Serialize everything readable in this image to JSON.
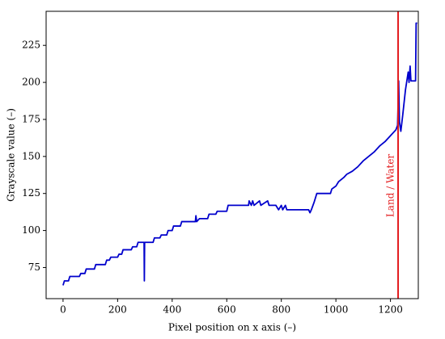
{
  "chart_data": {
    "type": "line",
    "xlabel": "Pixel position on x axis (–)",
    "ylabel": "Grayscale value (–)",
    "x": [
      0,
      5,
      20,
      25,
      60,
      65,
      80,
      85,
      115,
      120,
      155,
      160,
      170,
      175,
      200,
      205,
      215,
      220,
      250,
      255,
      270,
      275,
      297,
      298,
      299,
      330,
      335,
      355,
      360,
      380,
      385,
      400,
      405,
      430,
      435,
      485,
      487,
      490,
      500,
      530,
      535,
      560,
      565,
      600,
      605,
      640,
      680,
      682,
      690,
      695,
      700,
      720,
      725,
      750,
      755,
      780,
      790,
      800,
      805,
      815,
      820,
      900,
      905,
      910,
      920,
      930,
      980,
      985,
      1000,
      1010,
      1030,
      1040,
      1060,
      1080,
      1100,
      1120,
      1140,
      1160,
      1180,
      1200,
      1220,
      1226,
      1230,
      1233,
      1238,
      1245,
      1255,
      1265,
      1268,
      1272,
      1275,
      1292,
      1294,
      1298
    ],
    "values": [
      63,
      66,
      66,
      69,
      69,
      71,
      71,
      74,
      74,
      77,
      77,
      80,
      80,
      82,
      82,
      84,
      84,
      87,
      87,
      89,
      89,
      92,
      92,
      66,
      92,
      92,
      95,
      95,
      97,
      97,
      100,
      100,
      103,
      103,
      106,
      106,
      110,
      106,
      108,
      108,
      111,
      111,
      113,
      113,
      117,
      117,
      117,
      120,
      117,
      120,
      117,
      120,
      117,
      120,
      117,
      117,
      114,
      117,
      114,
      117,
      114,
      114,
      112,
      114,
      119,
      125,
      125,
      128,
      130,
      133,
      136,
      138,
      140,
      143,
      147,
      150,
      153,
      157,
      160,
      164,
      168,
      171,
      201,
      173,
      167,
      178,
      195,
      207,
      200,
      211,
      201,
      201,
      240,
      240
    ],
    "color": "#0000cc",
    "xlim": [
      -62,
      1302
    ],
    "ylim": [
      54,
      248
    ],
    "xticks": [
      0,
      200,
      400,
      600,
      800,
      1000,
      1200
    ],
    "yticks": [
      75,
      100,
      125,
      150,
      175,
      200,
      225
    ],
    "annotation": {
      "x": 1228,
      "text": "Land / Water",
      "color": "#e31a1c"
    }
  }
}
